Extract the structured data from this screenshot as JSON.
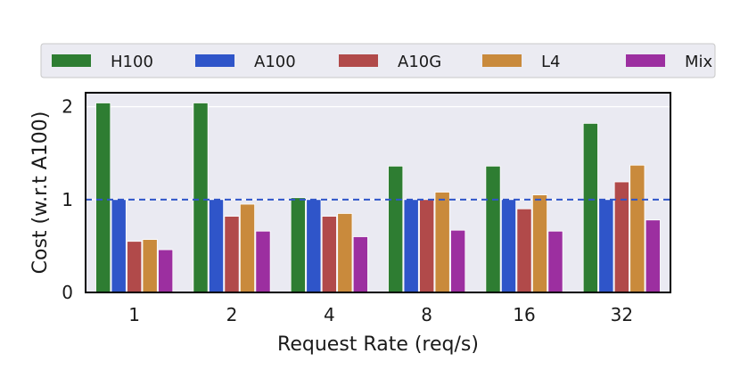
{
  "chart_data": {
    "type": "bar",
    "title": "",
    "xlabel": "Request Rate (req/s)",
    "ylabel": "Cost (w.r.t A100)",
    "categories": [
      "1",
      "2",
      "4",
      "8",
      "16",
      "32"
    ],
    "ylim": [
      0,
      2.15
    ],
    "yticks": [
      0,
      1,
      2
    ],
    "grid": true,
    "legend_position": "top, outside plot, single row",
    "reference_line": {
      "y": 1.0,
      "style": "dashed",
      "color": "#2f55c9"
    },
    "series": [
      {
        "name": "H100",
        "color": "#2e7d32",
        "values": [
          2.04,
          2.04,
          1.02,
          1.36,
          1.36,
          1.82
        ]
      },
      {
        "name": "A100",
        "color": "#2f55c9",
        "values": [
          1.0,
          1.0,
          1.0,
          1.0,
          1.0,
          1.0
        ]
      },
      {
        "name": "A10G",
        "color": "#b14a4a",
        "values": [
          0.55,
          0.82,
          0.82,
          1.0,
          0.9,
          1.19
        ]
      },
      {
        "name": "L4",
        "color": "#c98a3c",
        "values": [
          0.57,
          0.95,
          0.85,
          1.08,
          1.05,
          1.37
        ]
      },
      {
        "name": "Mix",
        "color": "#9c2fa0",
        "values": [
          0.46,
          0.66,
          0.6,
          0.67,
          0.66,
          0.78
        ]
      }
    ]
  }
}
